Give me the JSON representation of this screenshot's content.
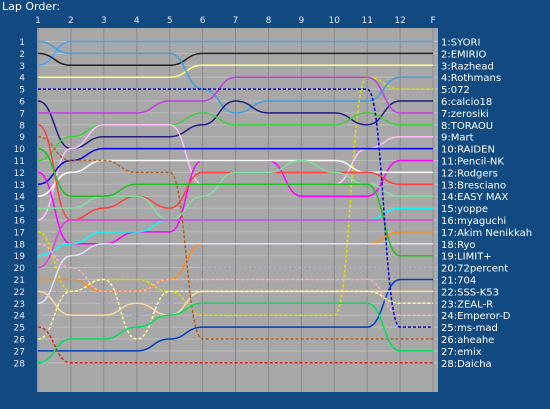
{
  "chart_data": {
    "type": "line",
    "title": "Lap Order:",
    "x": [
      "1",
      "2",
      "3",
      "4",
      "5",
      "6",
      "7",
      "8",
      "9",
      "10",
      "11",
      "12",
      "F"
    ],
    "positions": [
      "1",
      "2",
      "3",
      "4",
      "5",
      "6",
      "7",
      "8",
      "9",
      "10",
      "11",
      "12",
      "13",
      "14",
      "15",
      "16",
      "17",
      "18",
      "19",
      "20",
      "21",
      "22",
      "23",
      "24",
      "25",
      "26",
      "27",
      "28"
    ],
    "grid": true,
    "y_inverted": true,
    "series": [
      {
        "name": "1:SYORI",
        "color": "#4aa6ff",
        "style": "solid",
        "values": [
          3,
          1,
          1,
          1,
          1,
          1,
          1,
          1,
          1,
          1,
          1,
          1,
          1
        ]
      },
      {
        "name": "2:EMIRIO",
        "color": "#202020",
        "style": "solid",
        "values": [
          2,
          3,
          3,
          3,
          3,
          2,
          2,
          2,
          2,
          2,
          2,
          2,
          2
        ]
      },
      {
        "name": "3:Razhead",
        "color": "#ffff80",
        "style": "solid",
        "values": [
          4,
          4,
          4,
          4,
          4,
          3,
          3,
          3,
          3,
          3,
          3,
          3,
          3
        ]
      },
      {
        "name": "4:Rothmans",
        "color": "#40a0e0",
        "style": "solid",
        "values": [
          1,
          2,
          2,
          2,
          2,
          5,
          7,
          6,
          6,
          6,
          6,
          4,
          4
        ]
      },
      {
        "name": "5:072",
        "color": "#e0e000",
        "style": "dashed",
        "values": [
          17,
          22,
          21,
          21,
          22,
          24,
          24,
          24,
          24,
          24,
          4,
          5,
          5
        ]
      },
      {
        "name": "6:calcio18",
        "color": "#1f1f80",
        "style": "solid",
        "values": [
          6,
          10,
          9,
          9,
          9,
          8,
          6,
          7,
          7,
          7,
          8,
          6,
          6
        ]
      },
      {
        "name": "7:zerosiki",
        "color": "#c040e0",
        "style": "solid",
        "values": [
          7,
          7,
          7,
          7,
          6,
          6,
          4,
          4,
          4,
          4,
          4,
          7,
          7
        ]
      },
      {
        "name": "8:TORAOU",
        "color": "#40d040",
        "style": "solid",
        "values": [
          11,
          9,
          8,
          8,
          8,
          7,
          8,
          8,
          8,
          8,
          7,
          8,
          8
        ]
      },
      {
        "name": "9:Mart",
        "color": "#ffc0ff",
        "style": "solid",
        "values": [
          16,
          10,
          8,
          8,
          8,
          13,
          13,
          13,
          13,
          13,
          10,
          9,
          9
        ]
      },
      {
        "name": "10:RAIDEN",
        "color": "#0000e0",
        "style": "solid",
        "values": [
          13,
          11,
          10,
          10,
          10,
          10,
          10,
          10,
          10,
          10,
          10,
          10,
          10
        ]
      },
      {
        "name": "11:Pencil-NK",
        "color": "#ff00ff",
        "style": "solid",
        "values": [
          12,
          18,
          18,
          17,
          17,
          11,
          11,
          11,
          14,
          14,
          14,
          11,
          11
        ]
      },
      {
        "name": "12:Rodgers",
        "color": "#ffffff",
        "style": "solid",
        "values": [
          14,
          12,
          11,
          11,
          11,
          11,
          11,
          11,
          11,
          11,
          12,
          12,
          12
        ]
      },
      {
        "name": "13:Bresciano",
        "color": "#ff4040",
        "style": "solid",
        "values": [
          8,
          16,
          15,
          14,
          15,
          12,
          12,
          12,
          12,
          12,
          12,
          13,
          13
        ]
      },
      {
        "name": "14:EASY MAX",
        "color": "#80e0a0",
        "style": "solid",
        "values": [
          15,
          15,
          14,
          14,
          16,
          14,
          12,
          12,
          11,
          12,
          13,
          14,
          14
        ]
      },
      {
        "name": "15:yoppe",
        "color": "#00ffff",
        "style": "solid",
        "values": [
          19,
          18,
          17,
          17,
          16,
          16,
          16,
          16,
          16,
          16,
          16,
          15,
          15
        ]
      },
      {
        "name": "16:myaguchi",
        "color": "#e040e0",
        "style": "solid",
        "values": [
          20,
          16,
          16,
          16,
          16,
          16,
          16,
          16,
          16,
          16,
          16,
          16,
          16
        ]
      },
      {
        "name": "17:Akim Nenikkah",
        "color": "#ff8c1a",
        "style": "solid",
        "values": [
          21,
          21,
          22,
          22,
          21,
          18,
          18,
          18,
          18,
          18,
          18,
          17,
          17
        ]
      },
      {
        "name": "18:Ryo",
        "color": "#e0e0ff",
        "style": "solid",
        "values": [
          23,
          19,
          18,
          18,
          18,
          18,
          18,
          18,
          18,
          18,
          18,
          18,
          18
        ]
      },
      {
        "name": "19:LIMIT+",
        "color": "#20c020",
        "style": "solid",
        "values": [
          10,
          14,
          14,
          13,
          13,
          13,
          13,
          13,
          13,
          13,
          13,
          19,
          19
        ]
      },
      {
        "name": "20:72percent",
        "color": "#a0a0c0",
        "style": "dashed",
        "values": [
          24,
          21,
          23,
          24,
          23,
          20,
          20,
          20,
          20,
          20,
          20,
          20,
          20
        ]
      },
      {
        "name": "21:704",
        "color": "#0040c0",
        "style": "solid",
        "values": [
          27,
          27,
          27,
          27,
          26,
          25,
          25,
          25,
          25,
          25,
          25,
          21,
          21
        ]
      },
      {
        "name": "22:SSS-K53",
        "color": "#ffd8a0",
        "style": "solid",
        "values": [
          22,
          24,
          24,
          23,
          24,
          22,
          22,
          22,
          22,
          22,
          22,
          22,
          22
        ]
      },
      {
        "name": "23:ZEAL-R",
        "color": "#ffffa0",
        "style": "dashed",
        "values": [
          26,
          22,
          21,
          26,
          22,
          22,
          22,
          22,
          22,
          22,
          22,
          23,
          23
        ]
      },
      {
        "name": "24:Emperor-D",
        "color": "#ffb0c0",
        "style": "dashed",
        "values": [
          18,
          20,
          22,
          22,
          21,
          21,
          21,
          21,
          21,
          21,
          21,
          24,
          24
        ]
      },
      {
        "name": "25:ms-mad",
        "color": "#0000d0",
        "style": "dashed",
        "values": [
          5,
          5,
          5,
          5,
          5,
          5,
          5,
          5,
          5,
          5,
          5,
          25,
          25
        ]
      },
      {
        "name": "26:aheahe",
        "color": "#b06020",
        "style": "dashed",
        "values": [
          9,
          11,
          11,
          12,
          12,
          26,
          26,
          26,
          26,
          26,
          26,
          26,
          26
        ]
      },
      {
        "name": "27:emix",
        "color": "#00e060",
        "style": "solid",
        "values": [
          28,
          26,
          26,
          25,
          24,
          23,
          23,
          23,
          23,
          23,
          23,
          27,
          27
        ]
      },
      {
        "name": "28:Daicha",
        "color": "#e02020",
        "style": "dashed",
        "values": [
          25,
          28,
          28,
          28,
          28,
          28,
          28,
          28,
          28,
          28,
          28,
          28,
          28
        ]
      }
    ]
  }
}
